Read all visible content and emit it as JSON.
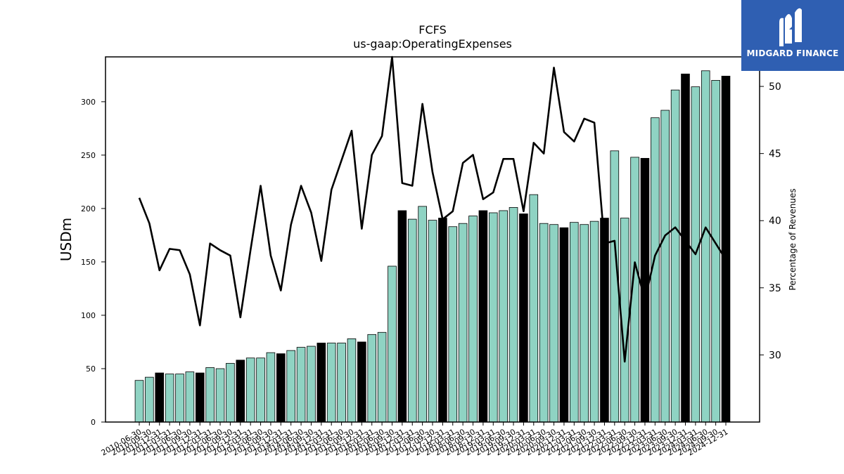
{
  "chart_data": {
    "type": "bar",
    "title": "FCFS",
    "subtitle": "us-gaap:OperatingExpenses",
    "ylabel": "USDm",
    "y2label": "Percentage of Revenues",
    "ylim": [
      0,
      342
    ],
    "y2lim": [
      25,
      52.2
    ],
    "yticks": [
      0,
      50,
      100,
      150,
      200,
      250,
      300
    ],
    "y2ticks": [
      30,
      35,
      40,
      45,
      50
    ],
    "grid": false,
    "colors": {
      "bar_quarter": "#8fd3c3",
      "bar_year": "#000000",
      "bar_edge": "#000000",
      "line": "#000000"
    },
    "categories": [
      "2010-06-30",
      "2010-09-30",
      "2010-12-31",
      "2011-03-31",
      "2011-06-30",
      "2011-09-30",
      "2011-12-31",
      "2012-03-31",
      "2012-06-30",
      "2012-09-30",
      "2012-12-31",
      "2013-03-31",
      "2013-06-30",
      "2013-09-30",
      "2013-12-31",
      "2014-03-31",
      "2014-06-30",
      "2014-09-30",
      "2014-12-31",
      "2015-03-31",
      "2015-06-30",
      "2015-09-30",
      "2015-12-31",
      "2016-03-31",
      "2016-06-30",
      "2016-09-30",
      "2016-12-31",
      "2017-03-31",
      "2017-06-30",
      "2017-09-30",
      "2017-12-31",
      "2018-03-31",
      "2018-06-30",
      "2018-09-30",
      "2018-12-31",
      "2019-03-31",
      "2019-06-30",
      "2019-09-30",
      "2019-12-31",
      "2020-03-31",
      "2020-06-30",
      "2020-09-30",
      "2020-12-31",
      "2021-03-31",
      "2021-06-30",
      "2021-09-30",
      "2021-12-31",
      "2022-03-31",
      "2022-06-30",
      "2022-09-30",
      "2022-12-31",
      "2023-03-31",
      "2023-06-30",
      "2023-09-30",
      "2023-12-31",
      "2024-03-31",
      "2024-06-30",
      "2024-09-30",
      "2024-12-31"
    ],
    "annual": [
      false,
      false,
      true,
      false,
      false,
      false,
      true,
      false,
      false,
      false,
      true,
      false,
      false,
      false,
      true,
      false,
      false,
      false,
      true,
      false,
      false,
      false,
      true,
      false,
      false,
      false,
      true,
      false,
      false,
      false,
      true,
      false,
      false,
      false,
      true,
      false,
      false,
      false,
      true,
      false,
      false,
      false,
      true,
      false,
      false,
      false,
      true,
      false,
      false,
      false,
      true,
      false,
      false,
      false,
      true,
      false,
      false,
      false,
      true
    ],
    "series": [
      {
        "name": "",
        "type": "bar",
        "values": [
          39,
          42,
          46,
          45,
          45,
          47,
          46,
          51,
          50,
          55,
          58,
          60,
          60,
          65,
          64,
          67,
          70,
          71,
          74,
          74,
          74,
          78,
          75,
          82,
          84,
          146,
          198,
          190,
          202,
          189,
          191,
          183,
          186,
          193,
          198,
          196,
          198,
          201,
          195,
          213,
          186,
          185,
          182,
          187,
          185,
          188,
          191,
          254,
          191,
          248,
          247,
          285,
          292,
          311,
          326,
          314,
          329,
          320,
          324
        ]
      },
      {
        "name": "",
        "type": "line",
        "axis": "right",
        "values": [
          41.7,
          39.8,
          36.3,
          37.9,
          37.8,
          36.0,
          32.2,
          38.3,
          37.8,
          37.4,
          32.8,
          37.8,
          42.6,
          37.4,
          34.8,
          39.7,
          42.6,
          40.6,
          37.0,
          42.3,
          44.5,
          46.7,
          39.4,
          44.9,
          46.3,
          52.2,
          42.8,
          42.6,
          48.7,
          43.6,
          40.1,
          40.7,
          44.3,
          44.9,
          41.6,
          42.1,
          44.6,
          44.6,
          40.7,
          45.8,
          45.0,
          51.4,
          46.6,
          45.9,
          47.6,
          47.3,
          38.3,
          38.5,
          29.5,
          36.9,
          34.1,
          37.4,
          38.9,
          39.5,
          38.5,
          37.5,
          39.5,
          38.3,
          37.1
        ]
      }
    ]
  },
  "logo": {
    "name": "MIDGARD FINANCE"
  }
}
